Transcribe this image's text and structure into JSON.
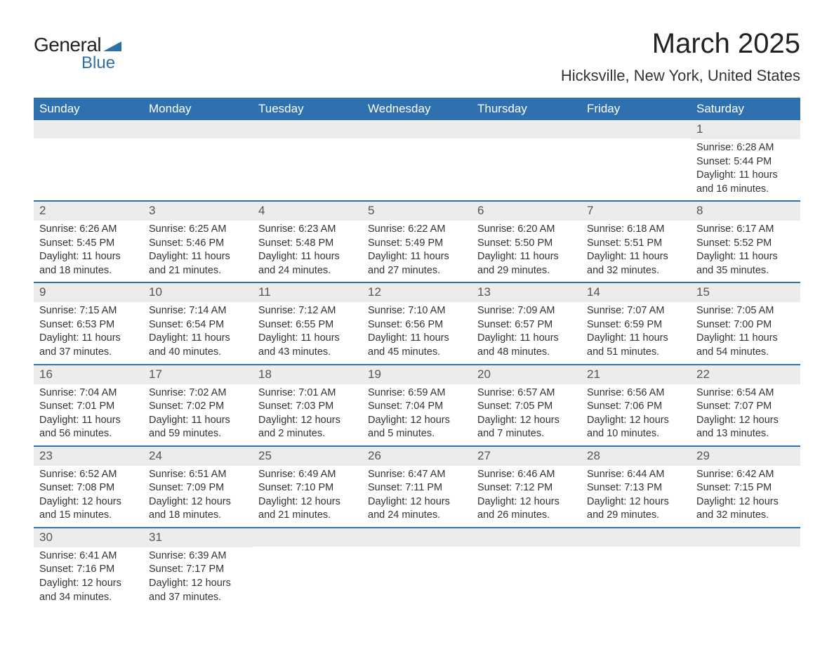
{
  "logo": {
    "general": "General",
    "blue": "Blue",
    "shape_color": "#2f6fa8"
  },
  "title": "March 2025",
  "location": "Hicksville, New York, United States",
  "colors": {
    "header_bg": "#2f71af",
    "header_text": "#ffffff",
    "daynum_bg": "#ececec",
    "daynum_text": "#555555",
    "body_text": "#333333",
    "row_divider": "#2f71af"
  },
  "day_headers": [
    "Sunday",
    "Monday",
    "Tuesday",
    "Wednesday",
    "Thursday",
    "Friday",
    "Saturday"
  ],
  "weeks": [
    [
      null,
      null,
      null,
      null,
      null,
      null,
      {
        "n": "1",
        "sr": "Sunrise: 6:28 AM",
        "ss": "Sunset: 5:44 PM",
        "d1": "Daylight: 11 hours",
        "d2": "and 16 minutes."
      }
    ],
    [
      {
        "n": "2",
        "sr": "Sunrise: 6:26 AM",
        "ss": "Sunset: 5:45 PM",
        "d1": "Daylight: 11 hours",
        "d2": "and 18 minutes."
      },
      {
        "n": "3",
        "sr": "Sunrise: 6:25 AM",
        "ss": "Sunset: 5:46 PM",
        "d1": "Daylight: 11 hours",
        "d2": "and 21 minutes."
      },
      {
        "n": "4",
        "sr": "Sunrise: 6:23 AM",
        "ss": "Sunset: 5:48 PM",
        "d1": "Daylight: 11 hours",
        "d2": "and 24 minutes."
      },
      {
        "n": "5",
        "sr": "Sunrise: 6:22 AM",
        "ss": "Sunset: 5:49 PM",
        "d1": "Daylight: 11 hours",
        "d2": "and 27 minutes."
      },
      {
        "n": "6",
        "sr": "Sunrise: 6:20 AM",
        "ss": "Sunset: 5:50 PM",
        "d1": "Daylight: 11 hours",
        "d2": "and 29 minutes."
      },
      {
        "n": "7",
        "sr": "Sunrise: 6:18 AM",
        "ss": "Sunset: 5:51 PM",
        "d1": "Daylight: 11 hours",
        "d2": "and 32 minutes."
      },
      {
        "n": "8",
        "sr": "Sunrise: 6:17 AM",
        "ss": "Sunset: 5:52 PM",
        "d1": "Daylight: 11 hours",
        "d2": "and 35 minutes."
      }
    ],
    [
      {
        "n": "9",
        "sr": "Sunrise: 7:15 AM",
        "ss": "Sunset: 6:53 PM",
        "d1": "Daylight: 11 hours",
        "d2": "and 37 minutes."
      },
      {
        "n": "10",
        "sr": "Sunrise: 7:14 AM",
        "ss": "Sunset: 6:54 PM",
        "d1": "Daylight: 11 hours",
        "d2": "and 40 minutes."
      },
      {
        "n": "11",
        "sr": "Sunrise: 7:12 AM",
        "ss": "Sunset: 6:55 PM",
        "d1": "Daylight: 11 hours",
        "d2": "and 43 minutes."
      },
      {
        "n": "12",
        "sr": "Sunrise: 7:10 AM",
        "ss": "Sunset: 6:56 PM",
        "d1": "Daylight: 11 hours",
        "d2": "and 45 minutes."
      },
      {
        "n": "13",
        "sr": "Sunrise: 7:09 AM",
        "ss": "Sunset: 6:57 PM",
        "d1": "Daylight: 11 hours",
        "d2": "and 48 minutes."
      },
      {
        "n": "14",
        "sr": "Sunrise: 7:07 AM",
        "ss": "Sunset: 6:59 PM",
        "d1": "Daylight: 11 hours",
        "d2": "and 51 minutes."
      },
      {
        "n": "15",
        "sr": "Sunrise: 7:05 AM",
        "ss": "Sunset: 7:00 PM",
        "d1": "Daylight: 11 hours",
        "d2": "and 54 minutes."
      }
    ],
    [
      {
        "n": "16",
        "sr": "Sunrise: 7:04 AM",
        "ss": "Sunset: 7:01 PM",
        "d1": "Daylight: 11 hours",
        "d2": "and 56 minutes."
      },
      {
        "n": "17",
        "sr": "Sunrise: 7:02 AM",
        "ss": "Sunset: 7:02 PM",
        "d1": "Daylight: 11 hours",
        "d2": "and 59 minutes."
      },
      {
        "n": "18",
        "sr": "Sunrise: 7:01 AM",
        "ss": "Sunset: 7:03 PM",
        "d1": "Daylight: 12 hours",
        "d2": "and 2 minutes."
      },
      {
        "n": "19",
        "sr": "Sunrise: 6:59 AM",
        "ss": "Sunset: 7:04 PM",
        "d1": "Daylight: 12 hours",
        "d2": "and 5 minutes."
      },
      {
        "n": "20",
        "sr": "Sunrise: 6:57 AM",
        "ss": "Sunset: 7:05 PM",
        "d1": "Daylight: 12 hours",
        "d2": "and 7 minutes."
      },
      {
        "n": "21",
        "sr": "Sunrise: 6:56 AM",
        "ss": "Sunset: 7:06 PM",
        "d1": "Daylight: 12 hours",
        "d2": "and 10 minutes."
      },
      {
        "n": "22",
        "sr": "Sunrise: 6:54 AM",
        "ss": "Sunset: 7:07 PM",
        "d1": "Daylight: 12 hours",
        "d2": "and 13 minutes."
      }
    ],
    [
      {
        "n": "23",
        "sr": "Sunrise: 6:52 AM",
        "ss": "Sunset: 7:08 PM",
        "d1": "Daylight: 12 hours",
        "d2": "and 15 minutes."
      },
      {
        "n": "24",
        "sr": "Sunrise: 6:51 AM",
        "ss": "Sunset: 7:09 PM",
        "d1": "Daylight: 12 hours",
        "d2": "and 18 minutes."
      },
      {
        "n": "25",
        "sr": "Sunrise: 6:49 AM",
        "ss": "Sunset: 7:10 PM",
        "d1": "Daylight: 12 hours",
        "d2": "and 21 minutes."
      },
      {
        "n": "26",
        "sr": "Sunrise: 6:47 AM",
        "ss": "Sunset: 7:11 PM",
        "d1": "Daylight: 12 hours",
        "d2": "and 24 minutes."
      },
      {
        "n": "27",
        "sr": "Sunrise: 6:46 AM",
        "ss": "Sunset: 7:12 PM",
        "d1": "Daylight: 12 hours",
        "d2": "and 26 minutes."
      },
      {
        "n": "28",
        "sr": "Sunrise: 6:44 AM",
        "ss": "Sunset: 7:13 PM",
        "d1": "Daylight: 12 hours",
        "d2": "and 29 minutes."
      },
      {
        "n": "29",
        "sr": "Sunrise: 6:42 AM",
        "ss": "Sunset: 7:15 PM",
        "d1": "Daylight: 12 hours",
        "d2": "and 32 minutes."
      }
    ],
    [
      {
        "n": "30",
        "sr": "Sunrise: 6:41 AM",
        "ss": "Sunset: 7:16 PM",
        "d1": "Daylight: 12 hours",
        "d2": "and 34 minutes."
      },
      {
        "n": "31",
        "sr": "Sunrise: 6:39 AM",
        "ss": "Sunset: 7:17 PM",
        "d1": "Daylight: 12 hours",
        "d2": "and 37 minutes."
      },
      null,
      null,
      null,
      null,
      null
    ]
  ]
}
